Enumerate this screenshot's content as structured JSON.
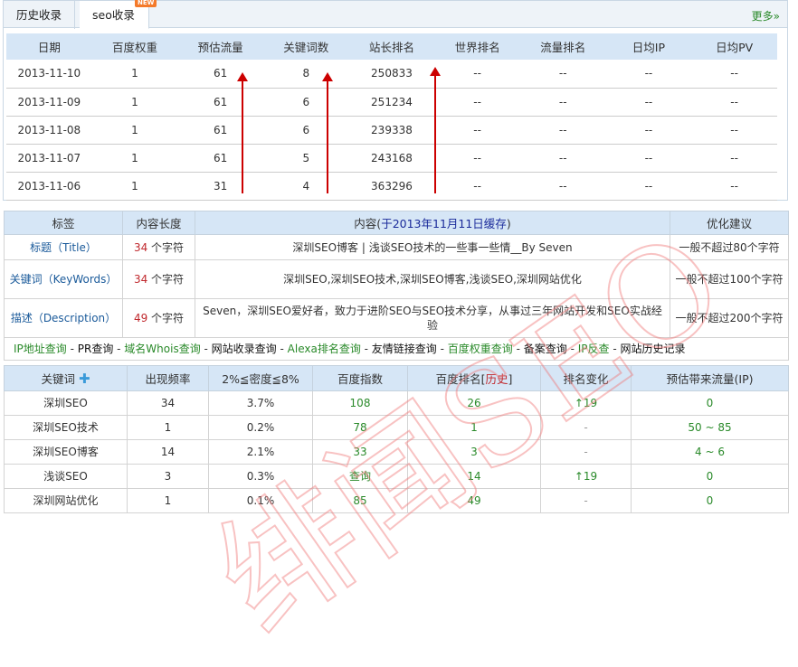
{
  "tabs": [
    {
      "label": "历史收录"
    },
    {
      "label": "seo收录",
      "badge": "NEW"
    }
  ],
  "more": "更多»",
  "history": {
    "headers": [
      "日期",
      "百度权重",
      "预估流量",
      "关键词数",
      "站长排名",
      "世界排名",
      "流量排名",
      "日均IP",
      "日均PV"
    ],
    "rows": [
      [
        "2013-11-10",
        "1",
        "61",
        "8",
        "250833",
        "--",
        "--",
        "--",
        "--"
      ],
      [
        "2013-11-09",
        "1",
        "61",
        "6",
        "251234",
        "--",
        "--",
        "--",
        "--"
      ],
      [
        "2013-11-08",
        "1",
        "61",
        "6",
        "239338",
        "--",
        "--",
        "--",
        "--"
      ],
      [
        "2013-11-07",
        "1",
        "61",
        "5",
        "243168",
        "--",
        "--",
        "--",
        "--"
      ],
      [
        "2013-11-06",
        "1",
        "31",
        "4",
        "363296",
        "--",
        "--",
        "--",
        "--"
      ]
    ]
  },
  "meta": {
    "headers": [
      "标签",
      "内容长度",
      "内容(",
      "于2013年11月11日缓存",
      ")",
      "优化建议"
    ],
    "unit": "个字符",
    "rows": [
      {
        "label": "标题（Title）",
        "len": "34",
        "content": "深圳SEO博客 | 浅谈SEO技术的一些事一些情__By Seven",
        "advice": "一般不超过80个字符"
      },
      {
        "label": "关键词（KeyWords）",
        "len": "34",
        "content": "深圳SEO,深圳SEO技术,深圳SEO博客,浅谈SEO,深圳网站优化",
        "advice": "一般不超过100个字符"
      },
      {
        "label": "描述（Description）",
        "len": "49",
        "content": "Seven，深圳SEO爱好者，致力于进阶SEO与SEO技术分享，从事过三年网站开发和SEO实战经验",
        "advice": "一般不超过200个字符"
      }
    ],
    "links": [
      {
        "t": "IP地址查询",
        "g": true
      },
      {
        "t": "PR查询",
        "g": false
      },
      {
        "t": "域名Whois查询",
        "g": true
      },
      {
        "t": "网站收录查询",
        "g": false
      },
      {
        "t": "Alexa排名查询",
        "g": true
      },
      {
        "t": "友情链接查询",
        "g": false
      },
      {
        "t": "百度权重查询",
        "g": true
      },
      {
        "t": "备案查询",
        "g": false
      },
      {
        "t": "IP反查",
        "g": true
      },
      {
        "t": "网站历史记录",
        "g": false
      }
    ],
    "sep": " - "
  },
  "keywords": {
    "headers": [
      "关键词",
      "出现频率",
      "2%≦密度≦8%",
      "百度指数",
      "百度排名[",
      "历史",
      "]",
      "排名变化",
      "预估带来流量(IP)"
    ],
    "rows": [
      [
        "深圳SEO",
        "34",
        "3.7%",
        "108",
        "26",
        "↑19",
        "0"
      ],
      [
        "深圳SEO技术",
        "1",
        "0.2%",
        "78",
        "1",
        "-",
        "50 ~ 85"
      ],
      [
        "深圳SEO博客",
        "14",
        "2.1%",
        "33",
        "3",
        "-",
        "4 ~ 6"
      ],
      [
        "浅谈SEO",
        "3",
        "0.3%",
        "查询",
        "14",
        "↑19",
        "0"
      ],
      [
        "深圳网站优化",
        "1",
        "0.1%",
        "85",
        "49",
        "-",
        "0"
      ]
    ]
  },
  "watermark": "绯闻SEO"
}
